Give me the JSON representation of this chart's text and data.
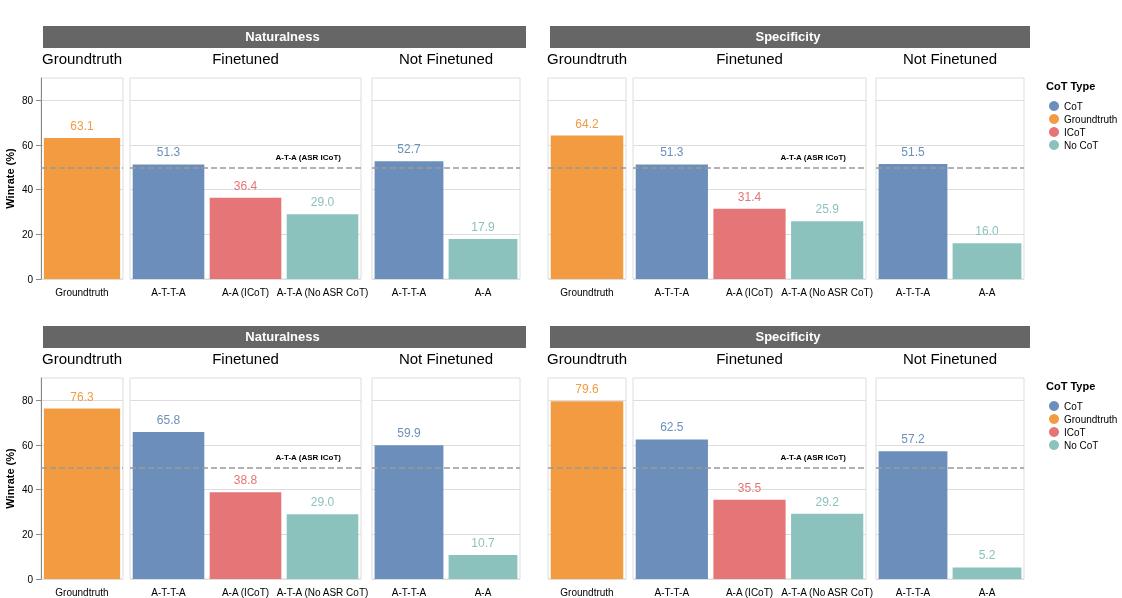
{
  "chart_data": [
    {
      "type": "bar",
      "title": "Naturalness",
      "ylabel": "Winrate (%)",
      "annotations": [
        "Groundtruth",
        "Finetuned",
        "Not Finetuned"
      ],
      "categories": [
        "Groundtruth",
        "A-T-T-A",
        "A-A (ICoT)",
        "A-T-A (No ASR CoT)",
        "A-T-T-A",
        "A-A"
      ],
      "ylim": [
        0,
        90
      ],
      "yticks": [
        0,
        20,
        40,
        60,
        80
      ],
      "grid": "y",
      "legend": false,
      "ref_lines": [
        {
          "axis": "y",
          "value": 50,
          "label": "A-T-A (ASR ICoT)",
          "line_style": "dashed"
        }
      ],
      "series": [
        {
          "color": "#6b8fba",
          "values": [
            null,
            51.3,
            null,
            null,
            52.7,
            null
          ],
          "value_labels": [
            null,
            "51.3",
            null,
            null,
            "52.7",
            null
          ]
        },
        {
          "color": "#f39b41",
          "values": [
            63.1,
            null,
            null,
            null,
            null,
            null
          ],
          "value_labels": [
            "63.1",
            null,
            null,
            null,
            null,
            null
          ]
        },
        {
          "color": "#e57576",
          "values": [
            null,
            null,
            36.4,
            null,
            null,
            null
          ],
          "value_labels": [
            null,
            null,
            "36.4",
            null,
            null,
            null
          ]
        },
        {
          "color": "#8cc2bd",
          "values": [
            null,
            null,
            null,
            29.0,
            null,
            17.9
          ],
          "value_labels": [
            null,
            null,
            null,
            "29.0",
            null,
            "17.9"
          ]
        }
      ]
    },
    {
      "type": "bar",
      "title": "Specificity",
      "legend_title": "CoT Type",
      "annotations": [
        "Groundtruth",
        "Finetuned",
        "Not Finetuned"
      ],
      "categories": [
        "Groundtruth",
        "A-T-T-A",
        "A-A (ICoT)",
        "A-T-A (No ASR CoT)",
        "A-T-T-A",
        "A-A"
      ],
      "ylim": [
        0,
        90
      ],
      "yticks": [
        0,
        20,
        40,
        60,
        80
      ],
      "grid": "y",
      "legend": "right",
      "tick_labels": "x",
      "ref_lines": [
        {
          "axis": "y",
          "value": 50,
          "label": "A-T-A (ASR ICoT)",
          "line_style": "dashed"
        }
      ],
      "series": [
        {
          "name": "CoT",
          "color": "#6b8fba",
          "values": [
            null,
            51.3,
            null,
            null,
            51.5,
            null
          ],
          "value_labels": [
            null,
            "51.3",
            null,
            null,
            "51.5",
            null
          ]
        },
        {
          "name": "Groundtruth",
          "color": "#f39b41",
          "values": [
            64.2,
            null,
            null,
            null,
            null,
            null
          ],
          "value_labels": [
            "64.2",
            null,
            null,
            null,
            null,
            null
          ]
        },
        {
          "name": "ICoT",
          "color": "#e57576",
          "values": [
            null,
            null,
            31.4,
            null,
            null,
            null
          ],
          "value_labels": [
            null,
            null,
            "31.4",
            null,
            null,
            null
          ]
        },
        {
          "name": "No CoT",
          "color": "#8cc2bd",
          "values": [
            null,
            null,
            null,
            25.9,
            null,
            16.0
          ],
          "value_labels": [
            null,
            null,
            null,
            "25.9",
            null,
            "16.0"
          ]
        }
      ]
    },
    {
      "type": "bar",
      "title": "Naturalness",
      "ylabel": "Winrate (%)",
      "annotations": [
        "Groundtruth",
        "Finetuned",
        "Not Finetuned"
      ],
      "categories": [
        "Groundtruth",
        "A-T-T-A",
        "A-A (ICoT)",
        "A-T-A (No ASR CoT)",
        "A-T-T-A",
        "A-A"
      ],
      "ylim": [
        0,
        90
      ],
      "yticks": [
        0,
        20,
        40,
        60,
        80
      ],
      "grid": "y",
      "legend": false,
      "ref_lines": [
        {
          "axis": "y",
          "value": 50,
          "label": "A-T-A (ASR ICoT)",
          "line_style": "dashed"
        }
      ],
      "series": [
        {
          "color": "#6b8fba",
          "values": [
            null,
            65.8,
            null,
            null,
            59.9,
            null
          ],
          "value_labels": [
            null,
            "65.8",
            null,
            null,
            "59.9",
            null
          ]
        },
        {
          "color": "#f39b41",
          "values": [
            76.3,
            null,
            null,
            null,
            null,
            null
          ],
          "value_labels": [
            "76.3",
            null,
            null,
            null,
            null,
            null
          ]
        },
        {
          "color": "#e57576",
          "values": [
            null,
            null,
            38.8,
            null,
            null,
            null
          ],
          "value_labels": [
            null,
            null,
            "38.8",
            null,
            null,
            null
          ]
        },
        {
          "color": "#8cc2bd",
          "values": [
            null,
            null,
            null,
            29.0,
            null,
            10.7
          ],
          "value_labels": [
            null,
            null,
            null,
            "29.0",
            null,
            "10.7"
          ]
        }
      ]
    },
    {
      "type": "bar",
      "title": "Specificity",
      "legend_title": "CoT Type",
      "annotations": [
        "Groundtruth",
        "Finetuned",
        "Not Finetuned"
      ],
      "categories": [
        "Groundtruth",
        "A-T-T-A",
        "A-A (ICoT)",
        "A-T-A (No ASR CoT)",
        "A-T-T-A",
        "A-A"
      ],
      "ylim": [
        0,
        90
      ],
      "yticks": [
        0,
        20,
        40,
        60,
        80
      ],
      "grid": "y",
      "legend": "right",
      "tick_labels": "x",
      "ref_lines": [
        {
          "axis": "y",
          "value": 50,
          "label": "A-T-A (ASR ICoT)",
          "line_style": "dashed"
        }
      ],
      "series": [
        {
          "name": "CoT",
          "color": "#6b8fba",
          "values": [
            null,
            62.5,
            null,
            null,
            57.2,
            null
          ],
          "value_labels": [
            null,
            "62.5",
            null,
            null,
            "57.2",
            null
          ]
        },
        {
          "name": "Groundtruth",
          "color": "#f39b41",
          "values": [
            79.6,
            null,
            null,
            null,
            null,
            null
          ],
          "value_labels": [
            "79.6",
            null,
            null,
            null,
            null,
            null
          ]
        },
        {
          "name": "ICoT",
          "color": "#e57576",
          "values": [
            null,
            null,
            35.5,
            null,
            null,
            null
          ],
          "value_labels": [
            null,
            null,
            "35.5",
            null,
            null,
            null
          ]
        },
        {
          "name": "No CoT",
          "color": "#8cc2bd",
          "values": [
            null,
            null,
            null,
            29.2,
            null,
            5.2
          ],
          "value_labels": [
            null,
            null,
            null,
            "29.2",
            null,
            "5.2"
          ]
        }
      ]
    }
  ]
}
